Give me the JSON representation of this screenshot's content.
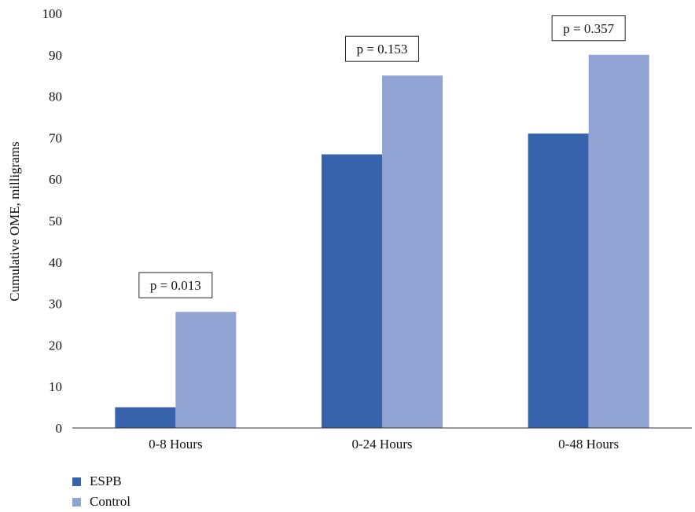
{
  "chart_data": {
    "type": "bar",
    "ylabel": "Cumulative OME, milligrams",
    "xlabel": "",
    "ylim": [
      0,
      100
    ],
    "yticks": [
      "0",
      "10",
      "20",
      "30",
      "40",
      "50",
      "60",
      "70",
      "80",
      "90",
      "100"
    ],
    "categories": [
      "0-8 Hours",
      "0-24 Hours",
      "0-48 Hours"
    ],
    "series": [
      {
        "name": "ESPB",
        "color": "#3763ac",
        "values": [
          5,
          66,
          71
        ]
      },
      {
        "name": "Control",
        "color": "#90a3d2",
        "values": [
          28,
          85,
          90
        ]
      }
    ],
    "annotations": [
      "p = 0.013",
      "p = 0.153",
      "p = 0.357"
    ],
    "grid": false,
    "legend_position": "bottom-left"
  }
}
